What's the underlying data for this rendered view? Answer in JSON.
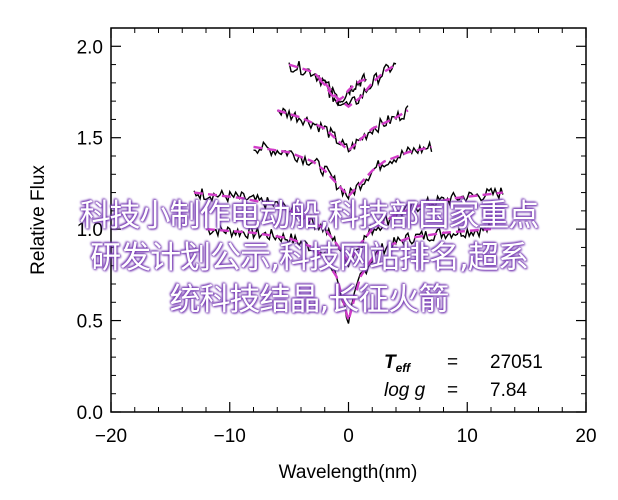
{
  "chart_data": {
    "type": "line",
    "xlabel": "Wavelength(nm)",
    "ylabel": "Relative Flux",
    "xlim": [
      -20,
      20
    ],
    "ylim": [
      0,
      2.1
    ],
    "x_ticks": [
      -20,
      -10,
      0,
      10,
      20
    ],
    "y_ticks": [
      0.0,
      0.5,
      1.0,
      1.5,
      2.0
    ],
    "x_tick_labels": [
      "−20",
      "−10",
      "0",
      "10",
      "20"
    ],
    "y_tick_labels": [
      "0.0",
      "0.5",
      "1.0",
      "1.5",
      "2.0"
    ],
    "grid": false,
    "colors": {
      "observed": "#000000",
      "model": "#d23cc8",
      "overlay_shadow": "#7a3fb5"
    },
    "legend": {
      "position": "bottom-right",
      "rows": [
        {
          "label_main": "T",
          "label_sub": "eff",
          "equals": "=",
          "value": "27051"
        },
        {
          "label_main": "log g",
          "label_sub": "",
          "equals": "=",
          "value": "7.84"
        }
      ]
    },
    "series": [
      {
        "offset": 0.0,
        "x": [
          -12,
          -8,
          -5,
          -3,
          -2,
          -1,
          -0.5,
          0,
          0.5,
          1,
          2,
          3,
          5,
          8,
          12
        ],
        "model": [
          1.0,
          0.98,
          0.95,
          0.9,
          0.84,
          0.74,
          0.62,
          0.5,
          0.62,
          0.74,
          0.84,
          0.9,
          0.95,
          0.98,
          1.0
        ]
      },
      {
        "offset": 0.2,
        "x": [
          -13,
          -9,
          -6,
          -4,
          -2,
          -1,
          0,
          1,
          2,
          4,
          6,
          9,
          13
        ],
        "model": [
          1.0,
          0.97,
          0.93,
          0.88,
          0.8,
          0.72,
          0.62,
          0.72,
          0.8,
          0.88,
          0.93,
          0.97,
          1.0
        ]
      },
      {
        "offset": 0.45,
        "x": [
          -8,
          -5,
          -3,
          -2,
          -1,
          0,
          1,
          2,
          3,
          5,
          7
        ],
        "model": [
          1.0,
          0.97,
          0.92,
          0.87,
          0.8,
          0.73,
          0.8,
          0.87,
          0.92,
          0.97,
          1.0
        ]
      },
      {
        "offset": 0.65,
        "x": [
          -6,
          -4,
          -2,
          -1,
          0,
          1,
          2,
          4,
          5
        ],
        "model": [
          1.0,
          0.96,
          0.9,
          0.84,
          0.78,
          0.84,
          0.9,
          0.96,
          1.0
        ]
      },
      {
        "offset": 0.9,
        "x": [
          -5,
          -3,
          -2,
          -1,
          0,
          1,
          2,
          3,
          4
        ],
        "model": [
          1.0,
          0.96,
          0.9,
          0.82,
          0.77,
          0.82,
          0.9,
          0.96,
          1.0
        ]
      },
      {
        "offset": 0.82,
        "x": [
          -2.5,
          -2,
          -1.5,
          -1,
          -0.5,
          0,
          0.5,
          1,
          1.5
        ],
        "model": [
          1.0,
          0.97,
          0.92,
          0.88,
          0.9,
          0.94,
          0.97,
          0.99,
          1.0
        ]
      }
    ]
  },
  "overlay_text": {
    "lines": [
      "科技小制作电动船,科技部国家重点",
      "研发计划公示,科技网站排名,超系",
      "统科技结晶,长征火箭"
    ]
  }
}
